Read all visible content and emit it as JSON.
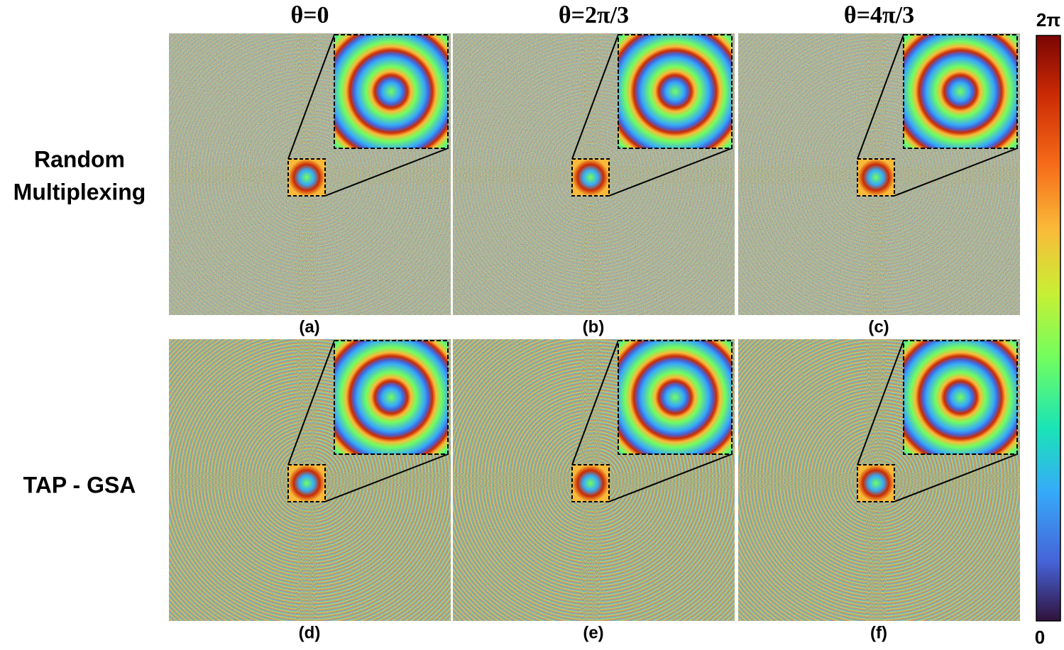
{
  "figure": {
    "column_titles": [
      "θ=0",
      "θ=2π/3",
      "θ=4π/3"
    ],
    "row_labels": [
      [
        "Random",
        "Multiplexing"
      ],
      [
        "TAP - GSA"
      ]
    ],
    "panel_labels": [
      "(a)",
      "(b)",
      "(c)",
      "(d)",
      "(e)",
      "(f)"
    ],
    "colorbar": {
      "top_label": "2π",
      "bottom_label": "0"
    }
  }
}
